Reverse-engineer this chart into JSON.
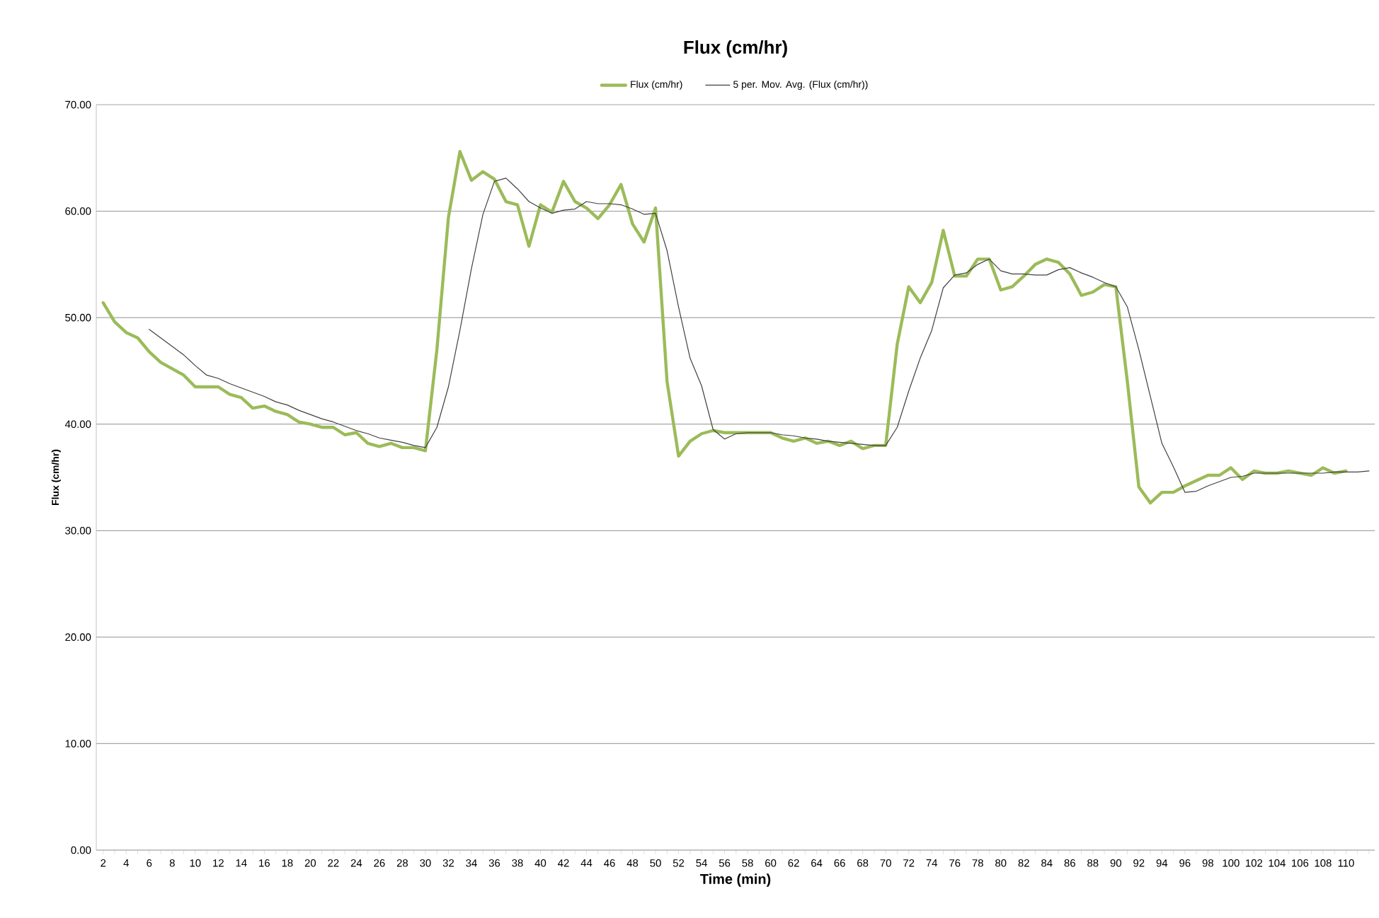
{
  "chart_data": {
    "type": "line",
    "title": "Flux (cm/hr)",
    "xlabel": "Time (min)",
    "ylabel": "Flux (cm/hr)",
    "categories": [
      "2",
      null,
      "4",
      null,
      "6",
      null,
      "8",
      null,
      "10",
      null,
      "12",
      null,
      "14",
      null,
      "16",
      null,
      "18",
      null,
      "20",
      null,
      "22",
      null,
      "24",
      null,
      "26",
      null,
      "28",
      null,
      "30",
      null,
      "32",
      null,
      "34",
      null,
      "36",
      null,
      "38",
      null,
      "40",
      null,
      "42",
      null,
      "44",
      null,
      "46",
      null,
      "48",
      null,
      "50",
      null,
      "52",
      null,
      "54",
      null,
      "56",
      null,
      "58",
      null,
      "60",
      null,
      "62",
      null,
      "64",
      null,
      "66",
      null,
      "68",
      null,
      "70",
      null,
      "72",
      null,
      "74",
      null,
      "76",
      null,
      "78",
      null,
      "80",
      null,
      "82",
      null,
      "84",
      null,
      "86",
      null,
      "88",
      null,
      "90",
      null,
      "92",
      null,
      "94",
      null,
      "96",
      null,
      "98",
      null,
      "100",
      null,
      "102",
      null,
      "104",
      null,
      "106",
      null,
      "108",
      null,
      "110",
      null,
      null
    ],
    "series": [
      {
        "name": "Flux (cm/hr)",
        "color": "#9bbb59",
        "values": [
          51.4,
          49.6,
          48.6,
          48.1,
          46.8,
          45.8,
          45.2,
          44.6,
          43.5,
          43.5,
          43.5,
          42.8,
          42.5,
          41.5,
          41.7,
          41.2,
          40.9,
          40.2,
          40.0,
          39.7,
          39.7,
          39.0,
          39.2,
          38.2,
          37.9,
          38.2,
          37.8,
          37.8,
          37.5,
          47.0,
          59.4,
          65.6,
          62.9,
          63.7,
          63.0,
          60.9,
          60.6,
          56.7,
          60.6,
          59.9,
          62.8,
          60.9,
          60.3,
          59.3,
          60.6,
          62.5,
          58.8,
          57.1,
          60.3,
          44.0,
          37.0,
          38.4,
          39.1,
          39.4,
          39.2,
          39.2,
          39.2,
          39.2,
          39.2,
          38.7,
          38.4,
          38.7,
          38.2,
          38.4,
          38.0,
          38.4,
          37.7,
          38.0,
          38.0,
          47.5,
          52.9,
          51.4,
          53.3,
          58.2,
          53.9,
          53.9,
          55.5,
          55.5,
          52.6,
          52.9,
          53.9,
          55.0,
          55.5,
          55.2,
          54.1,
          52.1,
          52.4,
          53.1,
          52.9,
          44.0,
          34.1,
          32.6,
          33.6,
          33.6,
          34.2,
          34.7,
          35.2,
          35.2,
          35.9,
          34.8,
          35.6,
          35.4,
          35.4,
          35.6,
          35.4,
          35.2,
          35.9,
          35.4,
          35.6,
          null,
          null
        ]
      },
      {
        "name": "5 per. Mov. Avg. (Flux (cm/hr))",
        "color": "#404040",
        "values": [
          null,
          null,
          null,
          null,
          48.9,
          48.1,
          47.3,
          46.5,
          45.5,
          44.6,
          44.3,
          43.8,
          43.4,
          43.0,
          42.6,
          42.1,
          41.8,
          41.3,
          40.9,
          40.5,
          40.2,
          39.8,
          39.4,
          39.1,
          38.7,
          38.5,
          38.3,
          38.0,
          37.8,
          39.7,
          43.5,
          48.8,
          54.6,
          59.7,
          62.8,
          63.1,
          62.1,
          60.9,
          60.3,
          59.8,
          60.1,
          60.2,
          60.9,
          60.7,
          60.7,
          60.6,
          60.2,
          59.7,
          59.8,
          56.3,
          51.0,
          46.2,
          43.6,
          39.5,
          38.6,
          39.1,
          39.2,
          39.2,
          39.2,
          39.0,
          38.9,
          38.7,
          38.6,
          38.4,
          38.3,
          38.2,
          38.1,
          38.0,
          38.0,
          39.7,
          43.1,
          46.2,
          48.8,
          52.8,
          54.0,
          54.2,
          55.0,
          55.5,
          54.4,
          54.1,
          54.1,
          54.0,
          54.0,
          54.5,
          54.7,
          54.2,
          53.8,
          53.3,
          52.9,
          51.0,
          47.0,
          42.6,
          38.2,
          36.0,
          33.6,
          33.7,
          34.2,
          34.6,
          35.0,
          35.1,
          35.4,
          35.4,
          35.4,
          35.4,
          35.4,
          35.4,
          35.4,
          35.5,
          35.5,
          35.5,
          35.6
        ]
      }
    ],
    "ylim": [
      0,
      70
    ],
    "yticks": [
      {
        "value": 0,
        "label": "0.00"
      },
      {
        "value": 10,
        "label": "10.00"
      },
      {
        "value": 20,
        "label": "20.00"
      },
      {
        "value": 30,
        "label": "30.00"
      },
      {
        "value": 40,
        "label": "40.00"
      },
      {
        "value": 50,
        "label": "50.00"
      },
      {
        "value": 60,
        "label": "60.00"
      },
      {
        "value": 70,
        "label": "70.00"
      }
    ],
    "grid": "y",
    "legend": "top",
    "marker": "none"
  }
}
